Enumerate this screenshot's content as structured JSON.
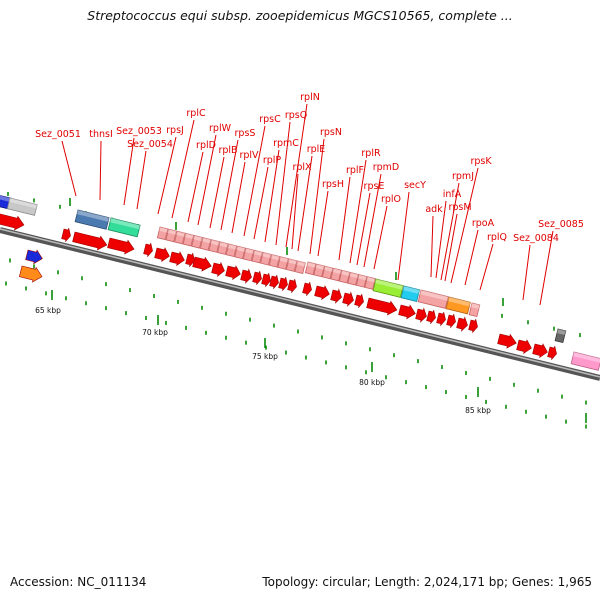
{
  "title": "Streptococcus equi subsp. zooepidemicus MGCS10565, complete ...",
  "accession": "Accession: NC_011134",
  "topology": "Topology: circular; Length: 2,024,171 bp; Genes: 1,965",
  "colors": {
    "gene_label": "#e00000",
    "cds_arrow": "#ee0000",
    "backbone": "#777777",
    "tick": "#0a8a0a"
  },
  "kbp_labels": [
    "65 kbp",
    "70 kbp",
    "75 kbp",
    "80 kbp",
    "85 kbp"
  ],
  "gene_labels": [
    "Sez_0051",
    "thnsI",
    "Sez_0053",
    "Sez_0054",
    "rpsJ",
    "rplC",
    "rplD",
    "rplW",
    "rplB",
    "rpsS",
    "rplV",
    "rpsC",
    "rplP",
    "rpmC",
    "rpsQ",
    "rplN",
    "rplX",
    "rplE",
    "rpsN",
    "rpsH",
    "rplF",
    "rplR",
    "rpsE",
    "rpmD",
    "rplO",
    "secY",
    "adk",
    "infA",
    "rpmJ",
    "rpsM",
    "rpsK",
    "rpoA",
    "rplQ",
    "Sez_0084",
    "Sez_0085"
  ]
}
